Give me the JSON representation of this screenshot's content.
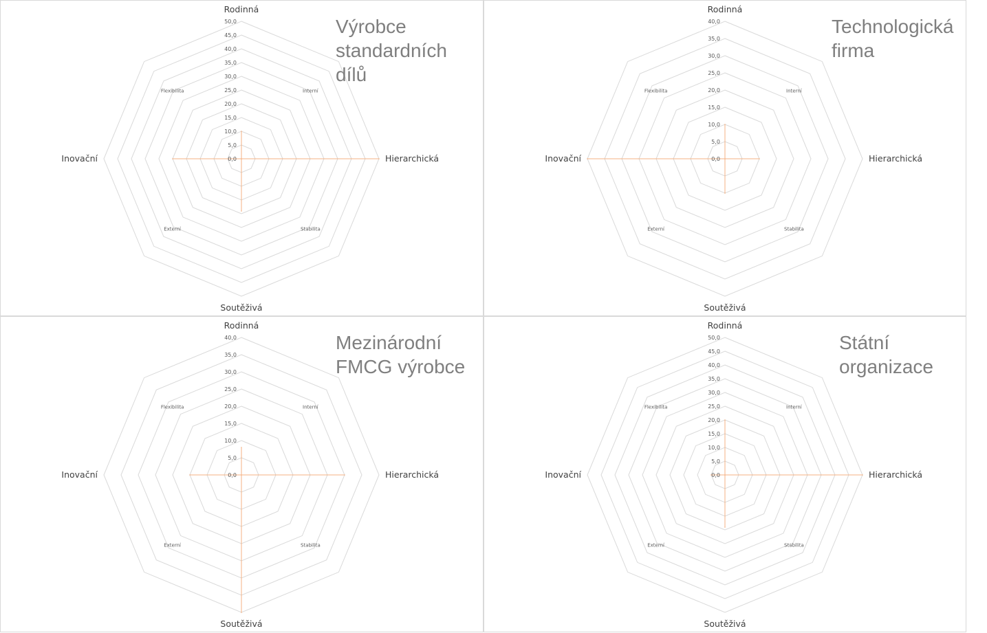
{
  "chart_data": [
    {
      "type": "radar",
      "title": "Výrobce\nstandardních\ndílů",
      "axes": [
        "Rodinná",
        "Interní",
        "Hierarchická",
        "Stabilita",
        "Soutěživá",
        "Externí",
        "Inovační",
        "Flexibilita"
      ],
      "major_axes": [
        "Rodinná",
        "Hierarchická",
        "Soutěživá",
        "Inovační"
      ],
      "ylim": [
        0,
        50
      ],
      "ticks": [
        "0,0",
        "5,0",
        "10,0",
        "15,0",
        "20,0",
        "25,0",
        "30,0",
        "35,0",
        "40,0",
        "45,0",
        "50,0"
      ],
      "values": [
        10,
        0,
        50,
        0,
        19,
        0,
        25,
        0
      ],
      "color": "#f4b183",
      "grid_color": "#d9d9d9"
    },
    {
      "type": "radar",
      "title": "Technologická\nfirma",
      "axes": [
        "Rodinná",
        "Interní",
        "Hierarchická",
        "Stabilita",
        "Soutěživá",
        "Externí",
        "Inovační",
        "Flexibilita"
      ],
      "major_axes": [
        "Rodinná",
        "Hierarchická",
        "Soutěživá",
        "Inovační"
      ],
      "ylim": [
        0,
        40
      ],
      "ticks": [
        "0,0",
        "5,0",
        "10,0",
        "15,0",
        "20,0",
        "25,0",
        "30,0",
        "35,0",
        "40,0"
      ],
      "values": [
        10,
        0,
        10,
        0,
        10,
        0,
        40,
        0
      ],
      "color": "#f4b183",
      "grid_color": "#d9d9d9"
    },
    {
      "type": "radar",
      "title": "Mezinárodní\nFMCG výrobce",
      "axes": [
        "Rodinná",
        "Interní",
        "Hierarchická",
        "Stabilita",
        "Soutěživá",
        "Externí",
        "Inovační",
        "Flexibilita"
      ],
      "major_axes": [
        "Rodinná",
        "Hierarchická",
        "Soutěživá",
        "Inovační"
      ],
      "ylim": [
        0,
        40
      ],
      "ticks": [
        "0,0",
        "5,0",
        "10,0",
        "15,0",
        "20,0",
        "25,0",
        "30,0",
        "35,0",
        "40,0"
      ],
      "values": [
        8,
        0,
        30,
        0,
        40,
        0,
        15,
        0
      ],
      "color": "#f4b183",
      "grid_color": "#d9d9d9"
    },
    {
      "type": "radar",
      "title": "Státní\norganizace",
      "axes": [
        "Rodinná",
        "Interní",
        "Hierarchická",
        "Stabilita",
        "Soutěživá",
        "Externí",
        "Inovační",
        "Flexibilita"
      ],
      "major_axes": [
        "Rodinná",
        "Hierarchická",
        "Soutěživá",
        "Inovační"
      ],
      "ylim": [
        0,
        50
      ],
      "ticks": [
        "0,0",
        "5,0",
        "10,0",
        "15,0",
        "20,0",
        "25,0",
        "30,0",
        "35,0",
        "40,0",
        "45,0",
        "50,0"
      ],
      "values": [
        20,
        0,
        50,
        0,
        19,
        0,
        5,
        0
      ],
      "color": "#f4b183",
      "grid_color": "#d9d9d9"
    }
  ]
}
